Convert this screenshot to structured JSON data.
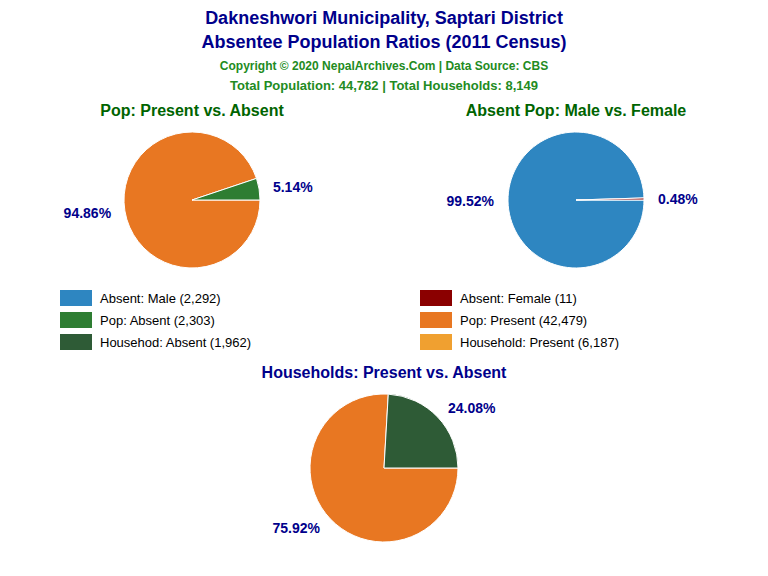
{
  "title": "Dakneshwori Municipality, Saptari District",
  "subtitle": "Absentee Population Ratios (2011 Census)",
  "annotations": [
    "Copyright © 2020 NepalArchives.Com | Data Source: CBS",
    "Total Population: 44,782 | Total Households: 8,149"
  ],
  "legend_entries": [
    {
      "label": "Absent: Male (2,292)",
      "color": "#2E86C1"
    },
    {
      "label": "Absent: Female (11)",
      "color": "#8B0000"
    },
    {
      "label": "Pop: Absent (2,303)",
      "color": "#2E7D32"
    },
    {
      "label": "Pop: Present (42,479)",
      "color": "#E87722"
    },
    {
      "label": "Househod: Absent (1,962)",
      "color": "#2E5B36"
    },
    {
      "label": "Household: Present (6,187)",
      "color": "#F0A030"
    }
  ],
  "chart_data": [
    {
      "type": "pie",
      "title": "Pop: Present vs. Absent",
      "values": [
        94.86,
        5.14
      ],
      "value_labels": [
        "94.86%",
        "5.14%"
      ],
      "colors": [
        "#E87722",
        "#2E7D32"
      ],
      "data_labels": true
    },
    {
      "type": "pie",
      "title": "Absent Pop: Male vs. Female",
      "values": [
        99.52,
        0.48
      ],
      "value_labels": [
        "99.52%",
        "0.48%"
      ],
      "colors": [
        "#2E86C1",
        "#8B0000"
      ],
      "data_labels": true
    },
    {
      "type": "pie",
      "title": "Households: Present vs. Absent",
      "values": [
        75.92,
        24.08
      ],
      "value_labels": [
        "75.92%",
        "24.08%"
      ],
      "colors": [
        "#E87722",
        "#2E5B36"
      ],
      "data_labels": true
    }
  ]
}
